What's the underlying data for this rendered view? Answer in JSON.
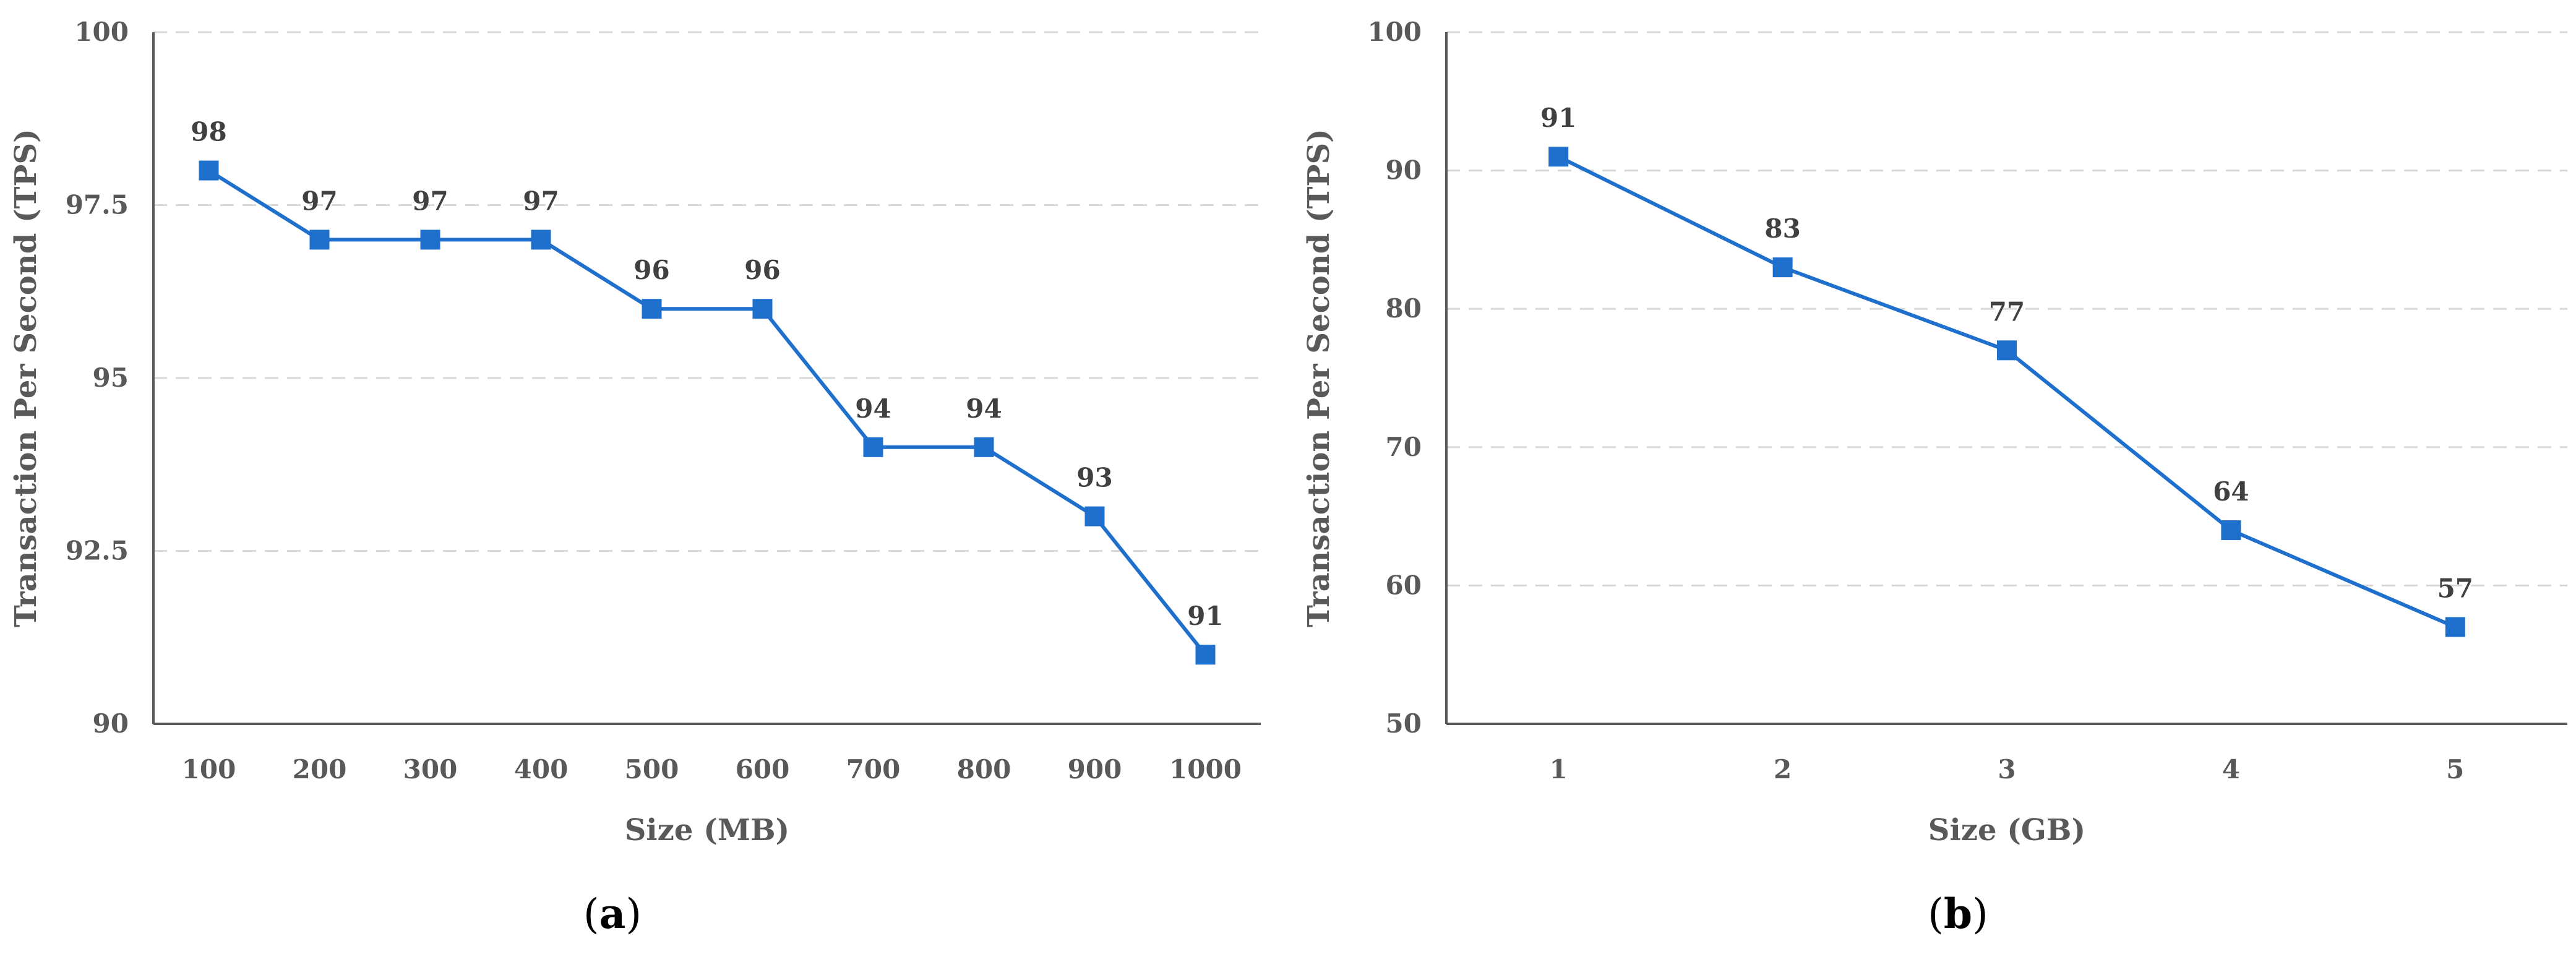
{
  "colors": {
    "series": "#1f6fcc",
    "axis": "#595959",
    "grid": "#d9d9d9"
  },
  "chart_data": [
    {
      "type": "line",
      "panel_label": "a",
      "xlabel": "Size (MB)",
      "ylabel": "Transaction Per Second (TPS)",
      "categories": [
        "100",
        "200",
        "300",
        "400",
        "500",
        "600",
        "700",
        "800",
        "900",
        "1000"
      ],
      "values": [
        98,
        97,
        97,
        97,
        96,
        96,
        94,
        94,
        93,
        91
      ],
      "ylim": [
        90,
        100
      ],
      "yticks": [
        "90",
        "92.5",
        "95",
        "97.5",
        "100"
      ],
      "grid": true,
      "marker": "square",
      "data_labels": true
    },
    {
      "type": "line",
      "panel_label": "b",
      "xlabel": "Size (GB)",
      "ylabel": "Transaction Per Second (TPS)",
      "categories": [
        "1",
        "2",
        "3",
        "4",
        "5"
      ],
      "values": [
        91,
        83,
        77,
        64,
        57
      ],
      "ylim": [
        50,
        100
      ],
      "yticks": [
        "50",
        "60",
        "70",
        "80",
        "90",
        "100"
      ],
      "grid": true,
      "marker": "square",
      "data_labels": true
    }
  ]
}
